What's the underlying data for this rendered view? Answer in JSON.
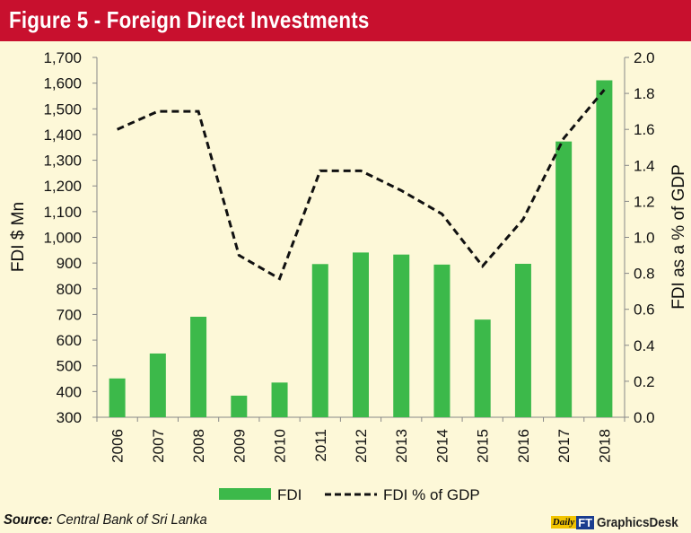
{
  "header": {
    "title": "Figure 5 - Foreign Direct Investments"
  },
  "footer": {
    "source_label": "Source:",
    "source_text": "Central Bank of Sri Lanka",
    "logo_daily": "Daily",
    "logo_ft": "FT",
    "logo_graphics": "GraphicsDesk"
  },
  "colors": {
    "banner": "#c8102e",
    "background": "#fdf8d8",
    "bar": "#3cb94a",
    "line": "#111111"
  },
  "chart_data": {
    "type": "bar",
    "categories": [
      "2006",
      "2007",
      "2008",
      "2009",
      "2010",
      "2011",
      "2012",
      "2013",
      "2014",
      "2015",
      "2016",
      "2017",
      "2018"
    ],
    "series": [
      {
        "name": "FDI",
        "type": "bar",
        "axis": "left",
        "values": [
          451,
          548,
          691,
          384,
          435,
          896,
          941,
          933,
          894,
          680,
          897,
          1373,
          1611
        ]
      },
      {
        "name": "FDI % of GDP",
        "type": "line",
        "style": "dashed",
        "axis": "right",
        "values": [
          1.6,
          1.7,
          1.7,
          0.9,
          0.77,
          1.37,
          1.37,
          1.26,
          1.13,
          0.84,
          1.1,
          1.55,
          1.82
        ]
      }
    ],
    "ylabel": "FDI $ Mn",
    "ylabel_right": "FDI as a % of GDP",
    "ylim": [
      300,
      1700
    ],
    "ylim_right": [
      0.0,
      2.0
    ],
    "yticks": [
      "300",
      "400",
      "500",
      "600",
      "700",
      "800",
      "900",
      "1,000",
      "1,100",
      "1,200",
      "1,300",
      "1,400",
      "1,500",
      "1,600",
      "1,700"
    ],
    "yticks_right": [
      "0.0",
      "0.2",
      "0.4",
      "0.6",
      "0.8",
      "1.0",
      "1.2",
      "1.4",
      "1.6",
      "1.8",
      "2.0"
    ],
    "grid": false,
    "legend_position": "bottom"
  }
}
